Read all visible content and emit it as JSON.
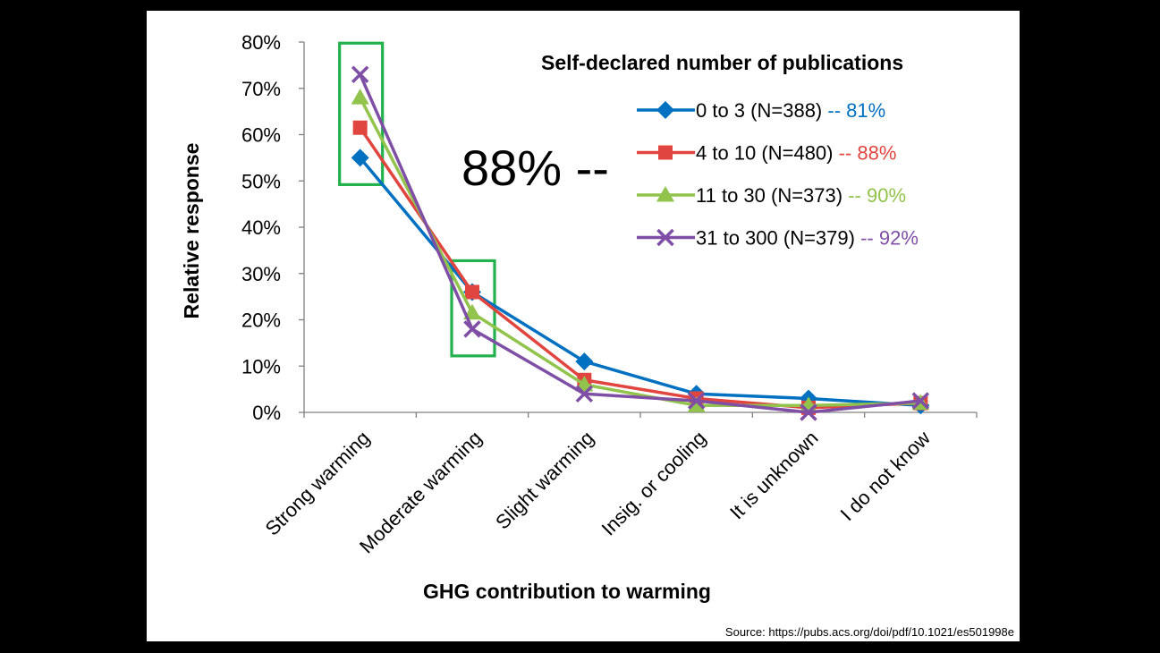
{
  "chart_data": {
    "type": "line",
    "xlabel": "GHG contribution to warming",
    "ylabel": "Relative response",
    "y_ticks": [
      "0%",
      "10%",
      "20%",
      "30%",
      "40%",
      "50%",
      "60%",
      "70%",
      "80%"
    ],
    "ylim": [
      0,
      80
    ],
    "grid": false,
    "legend_position": "top-right",
    "legend_title": "Self-declared number of publications",
    "categories": [
      "Strong warming",
      "Moderate warming",
      "Slight warming",
      "Insig. or cooling",
      "It is unknown",
      "I do not know"
    ],
    "series": [
      {
        "name": "0 to 3 (N=388)",
        "annotation": "-- 81%",
        "color": "#0070C0",
        "marker": "diamond",
        "values": [
          55,
          26,
          11,
          4,
          3,
          1.5
        ]
      },
      {
        "name": "4 to 10 (N=480)",
        "annotation": "-- 88%",
        "color": "#E0453F",
        "marker": "square",
        "values": [
          61.5,
          26,
          7,
          3,
          1,
          2
        ]
      },
      {
        "name": "11 to 30 (N=373)",
        "annotation": "-- 90%",
        "color": "#92C34C",
        "marker": "triangle",
        "values": [
          68,
          21.5,
          6,
          1.5,
          1.5,
          2
        ]
      },
      {
        "name": "31 to 300 (N=379)",
        "annotation": "-- 92%",
        "color": "#7F4FA6",
        "marker": "x",
        "values": [
          73,
          18,
          4,
          2.5,
          0,
          2.5
        ]
      }
    ],
    "highlight_color": "#22B14C",
    "highlight_categories": [
      "Strong warming",
      "Moderate warming"
    ],
    "annotation": "88% --",
    "source": "Source: https://pubs.acs.org/doi/pdf/10.1021/es501998e"
  }
}
